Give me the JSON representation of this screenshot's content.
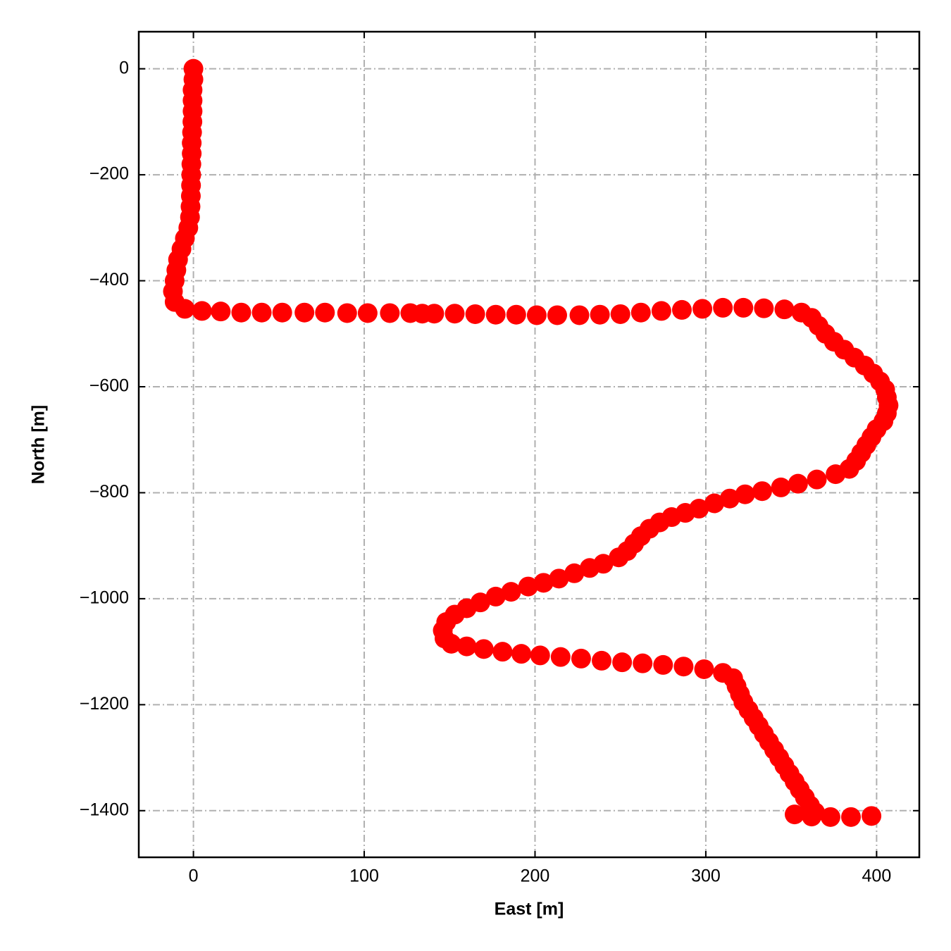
{
  "chart_data": {
    "type": "scatter",
    "xlabel": "East [m]",
    "ylabel": "North [m]",
    "color": "#ff0000",
    "grid": true,
    "xlim": [
      -32,
      425
    ],
    "ylim": [
      -1488,
      70
    ],
    "xticks": [
      0,
      100,
      200,
      300,
      400
    ],
    "yticks": [
      0,
      {
        "value": -200,
        "label": "−200"
      },
      {
        "value": -400,
        "label": "−400"
      },
      {
        "value": -600,
        "label": "−600"
      },
      {
        "value": -800,
        "label": "−800"
      },
      {
        "value": -1000,
        "label": "−1000"
      },
      {
        "value": -1200,
        "label": "−1200"
      },
      {
        "value": -1400,
        "label": "−1400"
      }
    ],
    "x": [
      0,
      0,
      -0.5,
      -0.5,
      -0.5,
      -0.6,
      -0.8,
      -1,
      -1,
      -1.2,
      -1.3,
      -1.4,
      -1.5,
      -1.7,
      -2,
      -3,
      -5,
      -7,
      -9,
      -10,
      -11,
      -12,
      -11,
      -5,
      5,
      16,
      28,
      40,
      52,
      65,
      77,
      90,
      102,
      115,
      127,
      134,
      141,
      153,
      165,
      177,
      189,
      201,
      213,
      226,
      238,
      250,
      262,
      274,
      286,
      298,
      310,
      322,
      334,
      346,
      356,
      362,
      366,
      370,
      375,
      381,
      387,
      393,
      398,
      402,
      405,
      406,
      407,
      406,
      404,
      400,
      397,
      394,
      391,
      388,
      384,
      376,
      365,
      354,
      344,
      333,
      323,
      314,
      305,
      296,
      288,
      280,
      273,
      267,
      262,
      258,
      254,
      249,
      240,
      232,
      223,
      214,
      205,
      196,
      186,
      177,
      168,
      160,
      153,
      148,
      146,
      147,
      151,
      160,
      170,
      181,
      192,
      203,
      215,
      227,
      239,
      251,
      263,
      275,
      287,
      299,
      310,
      316,
      318,
      320,
      322,
      325,
      328,
      331,
      334,
      337,
      340,
      343,
      346,
      349,
      352,
      355,
      358,
      361,
      364,
      352,
      362,
      373,
      385,
      397
    ],
    "values": [
      0,
      -20,
      -40,
      -60,
      -80,
      -100,
      -120,
      -140,
      -160,
      -180,
      -200,
      -220,
      -240,
      -260,
      -280,
      -300,
      -320,
      -340,
      -360,
      -380,
      -400,
      -420,
      -440,
      -453,
      -457,
      -458,
      -460,
      -460,
      -460,
      -460,
      -460,
      -461,
      -461,
      -461,
      -461,
      -462,
      -462,
      -462,
      -463,
      -464,
      -464,
      -465,
      -465,
      -465,
      -464,
      -463,
      -460,
      -457,
      -455,
      -453,
      -451,
      -451,
      -452,
      -454,
      -460,
      -470,
      -485,
      -500,
      -515,
      -530,
      -545,
      -560,
      -575,
      -590,
      -605,
      -620,
      -635,
      -650,
      -665,
      -680,
      -695,
      -710,
      -725,
      -740,
      -755,
      -765,
      -775,
      -783,
      -790,
      -797,
      -803,
      -811,
      -820,
      -830,
      -838,
      -846,
      -856,
      -868,
      -882,
      -896,
      -910,
      -922,
      -934,
      -942,
      -952,
      -962,
      -970,
      -977,
      -987,
      -996,
      -1007,
      -1018,
      -1030,
      -1044,
      -1060,
      -1075,
      -1085,
      -1090,
      -1095,
      -1100,
      -1104,
      -1107,
      -1110,
      -1113,
      -1117,
      -1120,
      -1122,
      -1125,
      -1128,
      -1133,
      -1140,
      -1150,
      -1165,
      -1180,
      -1195,
      -1210,
      -1225,
      -1240,
      -1255,
      -1270,
      -1285,
      -1300,
      -1315,
      -1330,
      -1345,
      -1360,
      -1375,
      -1390,
      -1403,
      -1407,
      -1411,
      -1412,
      -1412,
      -1410
    ]
  }
}
